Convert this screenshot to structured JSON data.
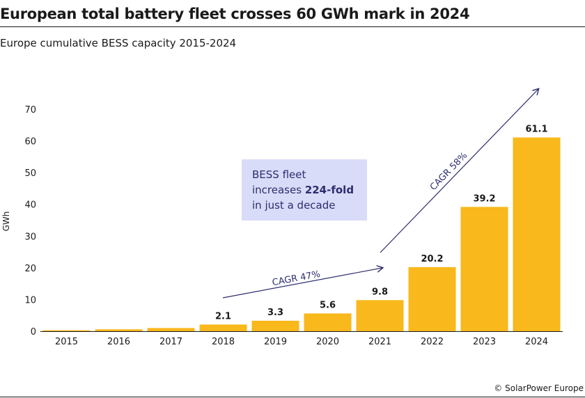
{
  "title": "European total battery fleet crosses 60 GWh mark in 2024",
  "subtitle": "Europe cumulative BESS capacity 2015-2024",
  "source": "© SolarPower Europe",
  "callout": {
    "line1": "BESS fleet",
    "line2_prefix": "increases ",
    "line2_bold": "224-fold",
    "line3": "in just a decade"
  },
  "annotations": {
    "cagr_1": "CAGR 47%",
    "cagr_2": "CAGR 58%"
  },
  "colors": {
    "bar": "#f9b81b",
    "arrow": "#2d2d6e",
    "callout_bg": "#d9dcf8"
  },
  "chart_data": {
    "type": "bar",
    "title": "European total battery fleet crosses 60 GWh mark in 2024",
    "subtitle": "Europe cumulative BESS capacity 2015-2024",
    "xlabel": "",
    "ylabel": "GWh",
    "ylim": [
      0,
      70
    ],
    "yticks": [
      0,
      10,
      20,
      30,
      40,
      50,
      60,
      70
    ],
    "categories": [
      "2015",
      "2016",
      "2017",
      "2018",
      "2019",
      "2020",
      "2021",
      "2022",
      "2023",
      "2024"
    ],
    "values": [
      0.3,
      0.6,
      1.0,
      2.1,
      3.3,
      5.6,
      9.8,
      20.2,
      39.2,
      61.1
    ],
    "data_labels": [
      "",
      "",
      "",
      "2.1",
      "3.3",
      "5.6",
      "9.8",
      "20.2",
      "39.2",
      "61.1"
    ],
    "grid": false,
    "legend": "none"
  }
}
